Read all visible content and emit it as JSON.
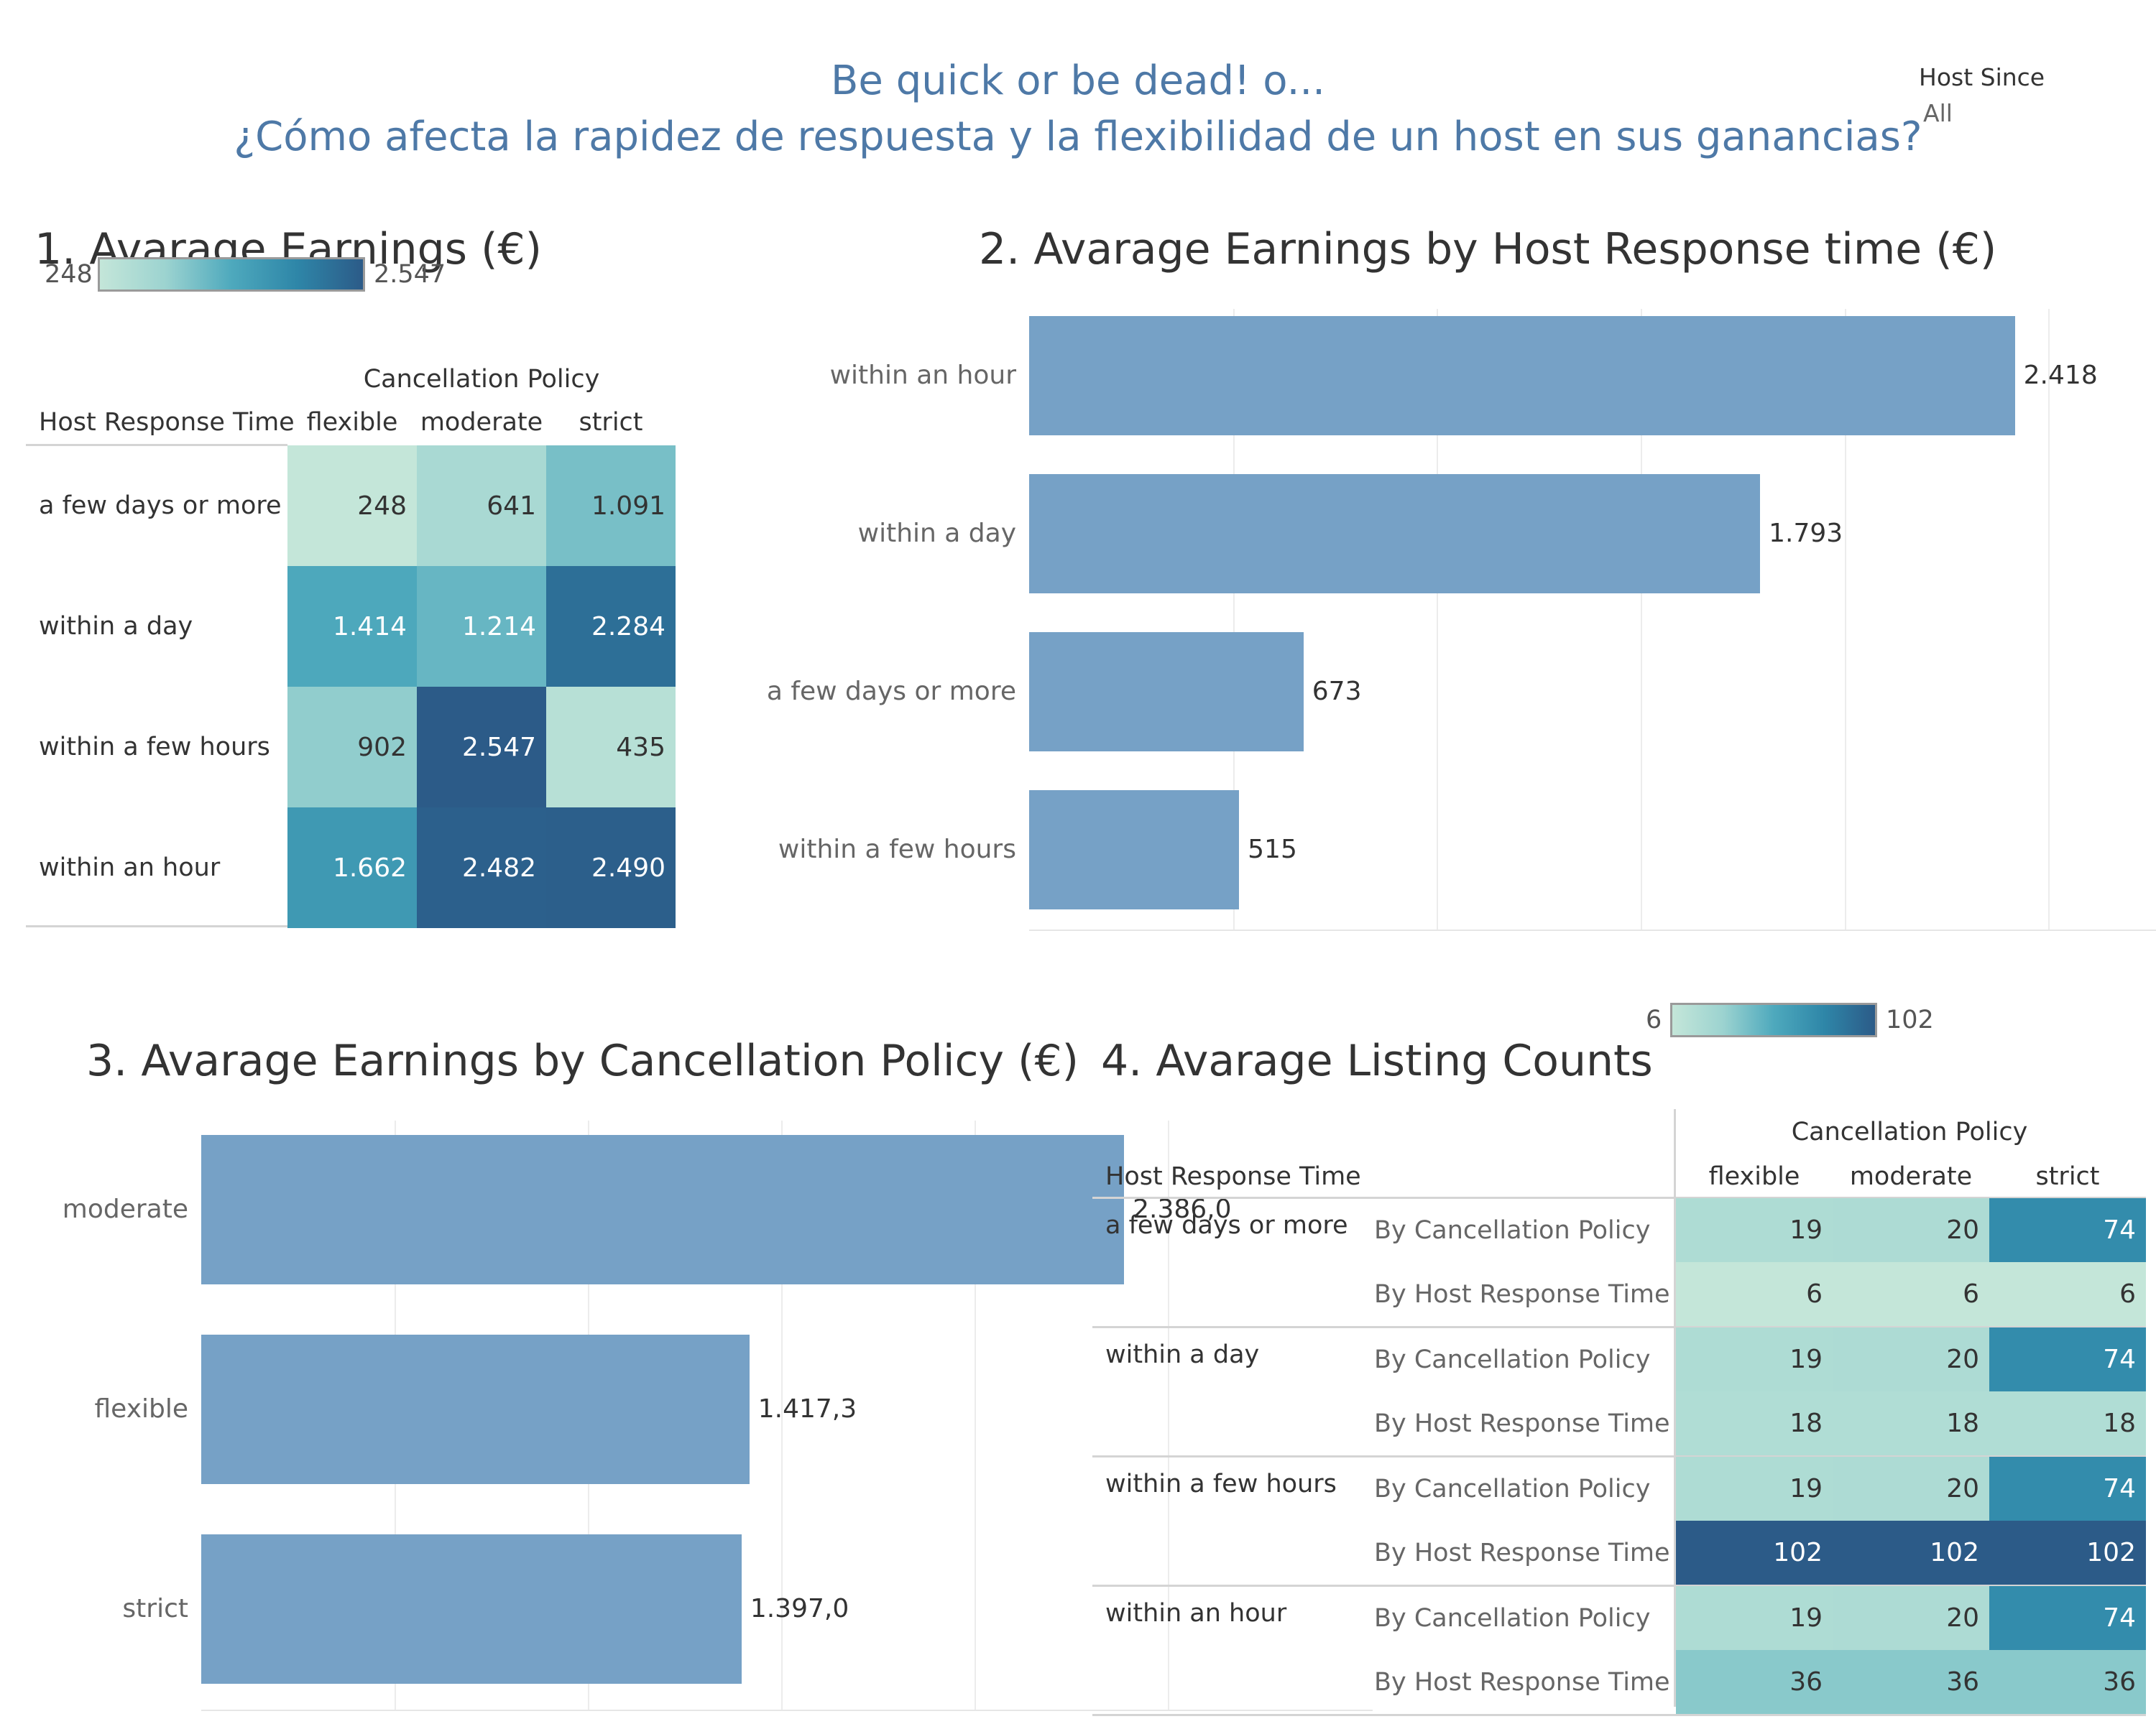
{
  "title": {
    "line1": "Be quick or be dead! o...",
    "line2": "¿Cómo afecta la rapidez de respuesta y la flexibilidad de un host en sus ganancias?"
  },
  "filter": {
    "label": "Host Since",
    "value": "All"
  },
  "colors": {
    "bar": "#76a1c6",
    "title": "#4e79a7",
    "low": "#c4e6d9",
    "high": "#2c5b88"
  },
  "chart_data": [
    {
      "type": "heatmap",
      "title": "1. Avarage  Earnings (€)",
      "legend": {
        "min": 248,
        "max": 2547,
        "min_label": "248",
        "max_label": "2.547"
      },
      "col_header": "Cancellation Policy",
      "row_header": "Host Response Time",
      "columns": [
        "flexible",
        "moderate",
        "strict"
      ],
      "rows": [
        "a few days or more",
        "within a day",
        "within a few hours",
        "within an hour"
      ],
      "values": [
        [
          248,
          641,
          1091
        ],
        [
          1414,
          1214,
          2284
        ],
        [
          902,
          2547,
          435
        ],
        [
          1662,
          2482,
          2490
        ]
      ],
      "labels": [
        [
          "248",
          "641",
          "1.091"
        ],
        [
          "1.414",
          "1.214",
          "2.284"
        ],
        [
          "902",
          "2.547",
          "435"
        ],
        [
          "1.662",
          "2.482",
          "2.490"
        ]
      ]
    },
    {
      "type": "bar",
      "orientation": "horizontal",
      "title": "2. Avarage Earnings by Host Response time (€)",
      "categories": [
        "within an hour",
        "within a day",
        "a few days or more",
        "within a few hours"
      ],
      "values": [
        2418,
        1793,
        673,
        515
      ],
      "labels": [
        "2.418",
        "1.793",
        "673",
        "515"
      ],
      "xlim": [
        0,
        2750
      ],
      "grid_step": 500
    },
    {
      "type": "bar",
      "orientation": "horizontal",
      "title": "3. Avarage Earnings by Cancellation Policy (€)",
      "categories": [
        "moderate",
        "flexible",
        "strict"
      ],
      "values": [
        2386.0,
        1417.3,
        1397.0
      ],
      "labels": [
        "2.386,0",
        "1.417,3",
        "1.397,0"
      ],
      "xlim": [
        0,
        2750
      ],
      "grid_step": 500
    },
    {
      "type": "heatmap",
      "title": "4. Avarage Listing Counts",
      "legend": {
        "min": 6,
        "max": 102,
        "min_label": "6",
        "max_label": "102"
      },
      "col_header": "Cancellation Policy",
      "row_header": "Host Response Time",
      "columns": [
        "flexible",
        "moderate",
        "strict"
      ],
      "groups": [
        {
          "name": "a few days or more",
          "rows": [
            {
              "measure": "By Cancellation Policy",
              "values": [
                19,
                20,
                74
              ]
            },
            {
              "measure": "By Host Response Time",
              "values": [
                6,
                6,
                6
              ]
            }
          ]
        },
        {
          "name": "within a day",
          "rows": [
            {
              "measure": "By Cancellation Policy",
              "values": [
                19,
                20,
                74
              ]
            },
            {
              "measure": "By Host Response Time",
              "values": [
                18,
                18,
                18
              ]
            }
          ]
        },
        {
          "name": "within a few hours",
          "rows": [
            {
              "measure": "By Cancellation Policy",
              "values": [
                19,
                20,
                74
              ]
            },
            {
              "measure": "By Host Response Time",
              "values": [
                102,
                102,
                102
              ]
            }
          ]
        },
        {
          "name": "within an hour",
          "rows": [
            {
              "measure": "By Cancellation Policy",
              "values": [
                19,
                20,
                74
              ]
            },
            {
              "measure": "By Host Response Time",
              "values": [
                36,
                36,
                36
              ]
            }
          ]
        }
      ]
    }
  ]
}
